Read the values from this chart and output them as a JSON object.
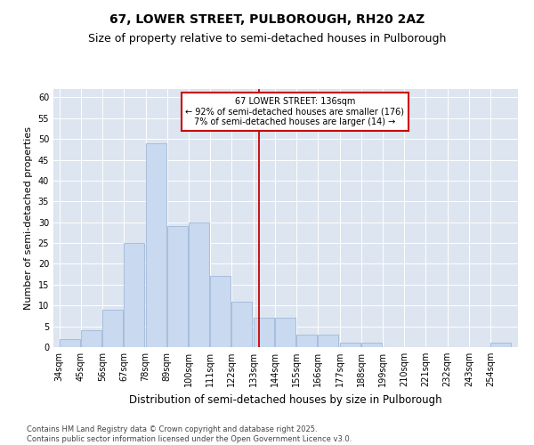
{
  "title": "67, LOWER STREET, PULBOROUGH, RH20 2AZ",
  "subtitle": "Size of property relative to semi-detached houses in Pulborough",
  "xlabel": "Distribution of semi-detached houses by size in Pulborough",
  "ylabel": "Number of semi-detached properties",
  "footer_line1": "Contains HM Land Registry data © Crown copyright and database right 2025.",
  "footer_line2": "Contains public sector information licensed under the Open Government Licence v3.0.",
  "bins": [
    34,
    45,
    56,
    67,
    78,
    89,
    100,
    111,
    122,
    133,
    144,
    155,
    166,
    177,
    188,
    199,
    210,
    221,
    232,
    243,
    254
  ],
  "values": [
    2,
    4,
    9,
    25,
    49,
    29,
    30,
    17,
    11,
    7,
    7,
    3,
    3,
    1,
    1,
    0,
    0,
    0,
    0,
    0,
    1
  ],
  "bar_color": "#c8d9f0",
  "bar_edge_color": "#a0b8d8",
  "property_size": 136,
  "property_label": "67 LOWER STREET: 136sqm",
  "pct_smaller": 92,
  "count_smaller": 176,
  "pct_larger": 7,
  "count_larger": 14,
  "vline_color": "#cc0000",
  "annotation_box_color": "#cc0000",
  "ylim": [
    0,
    62
  ],
  "yticks": [
    0,
    5,
    10,
    15,
    20,
    25,
    30,
    35,
    40,
    45,
    50,
    55,
    60
  ],
  "background_color": "#dde5f0",
  "title_fontsize": 10,
  "subtitle_fontsize": 9,
  "tick_label_fontsize": 7,
  "axis_label_fontsize": 8.5,
  "ylabel_fontsize": 8,
  "footer_fontsize": 6
}
